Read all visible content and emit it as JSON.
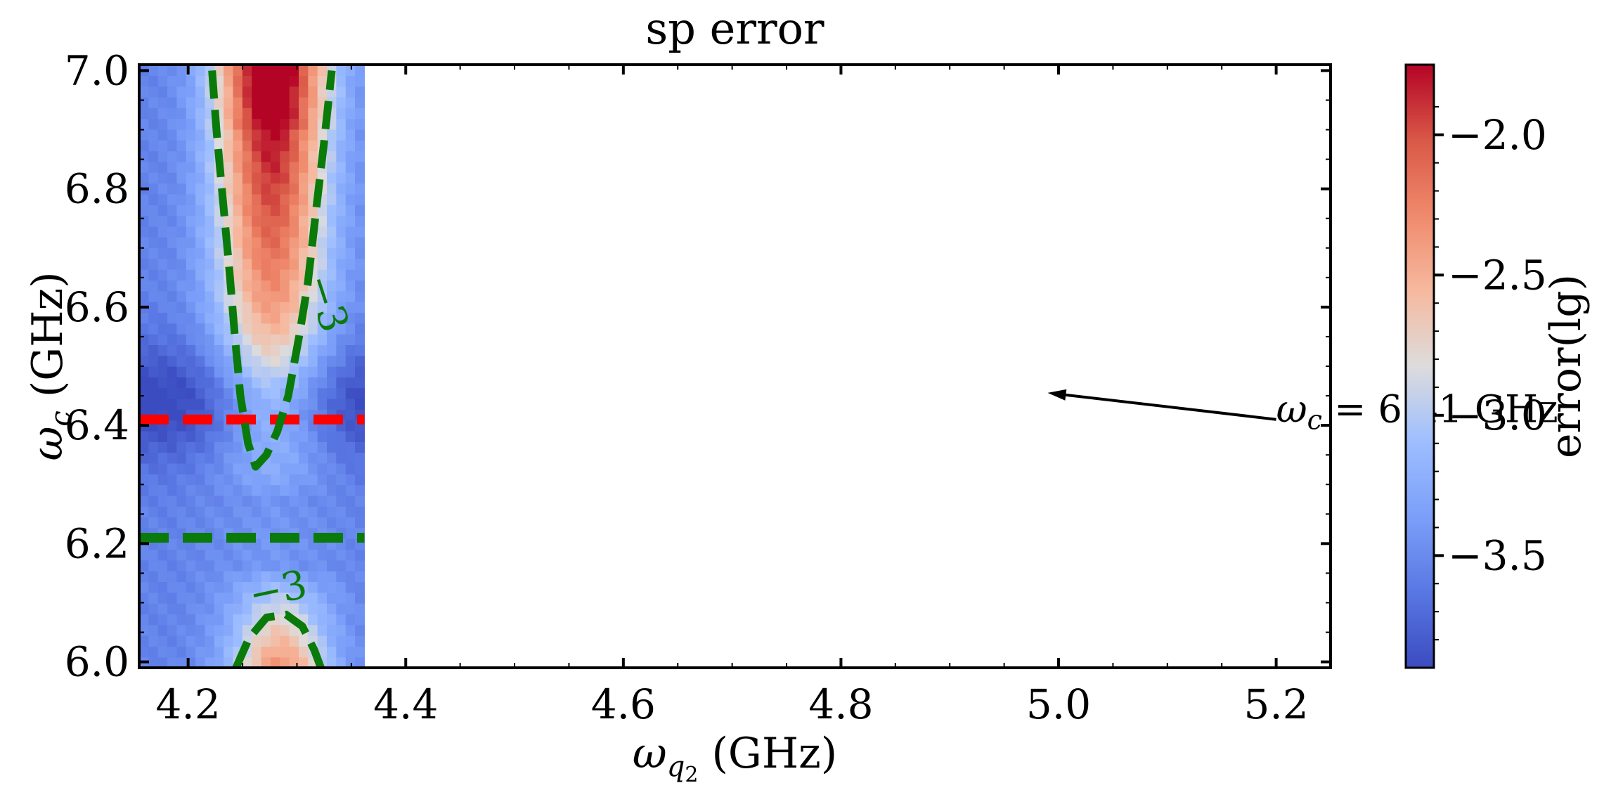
{
  "chart_data": {
    "type": "heatmap",
    "title": "sp error",
    "xlabel": "ω_{q2} (GHz)",
    "ylabel": "ω_c (GHz)",
    "xlabel_parts": {
      "symbol": "ω",
      "sub": "q",
      "subsub": "2",
      "unit": "(GHz)"
    },
    "ylabel_parts": {
      "symbol": "ω",
      "sub": "c",
      "unit": "(GHz)"
    },
    "xlim": [
      4.155,
      5.25
    ],
    "ylim": [
      5.99,
      7.01
    ],
    "xticks": [
      4.2,
      4.4,
      4.6,
      4.8,
      5.0,
      5.2
    ],
    "xtick_labels": [
      "4.2",
      "4.4",
      "4.6",
      "4.8",
      "5.0",
      "5.2"
    ],
    "yticks": [
      6.0,
      6.2,
      6.4,
      6.6,
      6.8,
      7.0
    ],
    "ytick_labels": [
      "6.0",
      "6.2",
      "6.4",
      "6.6",
      "6.8",
      "7.0"
    ],
    "data_x_range": [
      4.155,
      4.362
    ],
    "data_y_range": [
      5.99,
      7.01
    ],
    "colormap": "coolwarm",
    "colorbar": {
      "label": "error(lg)",
      "range": [
        -3.9,
        -1.75
      ],
      "ticks": [
        -2.0,
        -2.5,
        -3.0,
        -3.5
      ],
      "tick_labels": [
        "−2.0",
        "−2.5",
        "−3.0",
        "−3.5"
      ]
    },
    "contours": [
      {
        "level": -3,
        "label": "−3",
        "color": "#0a7a0a",
        "style": "dashed",
        "points": [
          [
            4.222,
            7.0
          ],
          [
            4.226,
            6.9
          ],
          [
            4.232,
            6.78
          ],
          [
            4.238,
            6.66
          ],
          [
            4.243,
            6.55
          ],
          [
            4.248,
            6.45
          ],
          [
            4.255,
            6.37
          ],
          [
            4.262,
            6.33
          ],
          [
            4.272,
            6.35
          ],
          [
            4.282,
            6.39
          ],
          [
            4.292,
            6.45
          ],
          [
            4.302,
            6.55
          ],
          [
            4.31,
            6.64
          ],
          [
            4.318,
            6.77
          ],
          [
            4.325,
            6.88
          ],
          [
            4.332,
            7.0
          ]
        ]
      },
      {
        "level": -3,
        "label": "−3",
        "color": "#0a7a0a",
        "style": "dashed",
        "points": [
          [
            4.244,
            5.99
          ],
          [
            4.256,
            6.04
          ],
          [
            4.272,
            6.075
          ],
          [
            4.29,
            6.08
          ],
          [
            4.305,
            6.06
          ],
          [
            4.316,
            6.02
          ],
          [
            4.322,
            5.99
          ]
        ]
      }
    ],
    "hlines": [
      {
        "y": 6.41,
        "color": "#ff0000",
        "xrange": [
          4.155,
          4.362
        ]
      },
      {
        "y": 6.21,
        "color": "#0a7a0a",
        "xrange": [
          4.155,
          4.362
        ]
      }
    ],
    "annotation": {
      "text_symbol": "ω",
      "text_sub": "c",
      "text_rest": " = 6.41 GHz",
      "text_at": [
        5.2,
        6.41
      ],
      "arrow_to": [
        4.99,
        6.455
      ]
    },
    "grid": false
  }
}
